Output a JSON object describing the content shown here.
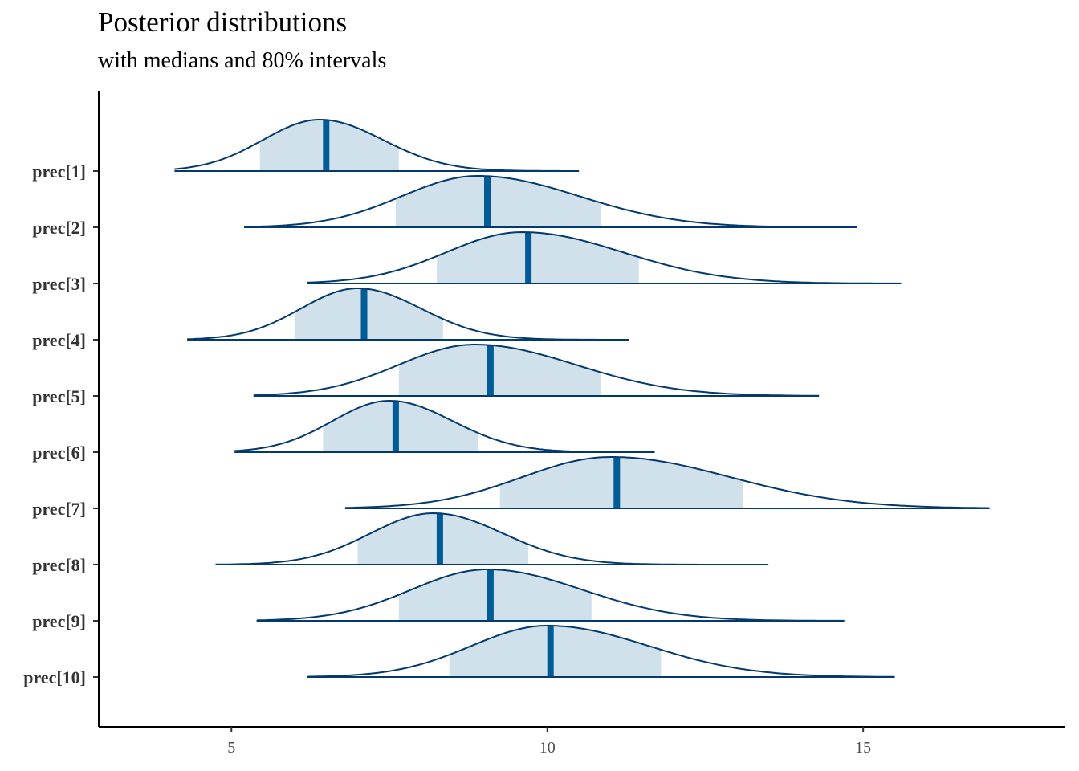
{
  "chart_data": {
    "type": "area",
    "title": "Posterior distributions",
    "subtitle": "with medians and 80% intervals",
    "xlabel": "",
    "ylabel": "",
    "xlim": [
      2.9,
      18.2
    ],
    "x_ticks": [
      5,
      10,
      15
    ],
    "x_tick_labels": [
      "5",
      "10",
      "15"
    ],
    "grid": false,
    "colors": {
      "fill": "#d1e1ec",
      "line": "#03396c",
      "median": "#005b96"
    },
    "series": [
      {
        "name": "prec[1]",
        "min": 4.1,
        "max": 10.5,
        "mode": 6.4,
        "median": 6.5,
        "interval_80": [
          5.45,
          7.65
        ],
        "sigma_left": 0.9,
        "sigma_right": 1.0
      },
      {
        "name": "prec[2]",
        "min": 5.2,
        "max": 14.9,
        "mode": 8.9,
        "median": 9.05,
        "interval_80": [
          7.6,
          10.85
        ],
        "sigma_left": 1.2,
        "sigma_right": 1.6
      },
      {
        "name": "prec[3]",
        "min": 6.2,
        "max": 15.6,
        "mode": 9.6,
        "median": 9.7,
        "interval_80": [
          8.25,
          11.45
        ],
        "sigma_left": 1.2,
        "sigma_right": 1.6
      },
      {
        "name": "prec[4]",
        "min": 4.3,
        "max": 11.3,
        "mode": 7.0,
        "median": 7.1,
        "interval_80": [
          6.0,
          8.35
        ],
        "sigma_left": 0.9,
        "sigma_right": 1.0
      },
      {
        "name": "prec[5]",
        "min": 5.35,
        "max": 14.3,
        "mode": 8.85,
        "median": 9.1,
        "interval_80": [
          7.65,
          10.85
        ],
        "sigma_left": 1.2,
        "sigma_right": 1.6
      },
      {
        "name": "prec[6]",
        "min": 5.05,
        "max": 11.7,
        "mode": 7.5,
        "median": 7.6,
        "interval_80": [
          6.45,
          8.9
        ],
        "sigma_left": 0.9,
        "sigma_right": 1.0
      },
      {
        "name": "prec[7]",
        "min": 6.8,
        "max": 17.0,
        "mode": 11.0,
        "median": 11.1,
        "interval_80": [
          9.25,
          13.1
        ],
        "sigma_left": 1.4,
        "sigma_right": 1.9
      },
      {
        "name": "prec[8]",
        "min": 4.75,
        "max": 13.5,
        "mode": 8.2,
        "median": 8.3,
        "interval_80": [
          7.0,
          9.7
        ],
        "sigma_left": 1.0,
        "sigma_right": 1.1
      },
      {
        "name": "prec[9]",
        "min": 5.4,
        "max": 14.7,
        "mode": 9.05,
        "median": 9.1,
        "interval_80": [
          7.65,
          10.7
        ],
        "sigma_left": 1.2,
        "sigma_right": 1.5
      },
      {
        "name": "prec[10]",
        "min": 6.2,
        "max": 15.5,
        "mode": 10.0,
        "median": 10.05,
        "interval_80": [
          8.45,
          11.8
        ],
        "sigma_left": 1.2,
        "sigma_right": 1.6
      }
    ]
  }
}
